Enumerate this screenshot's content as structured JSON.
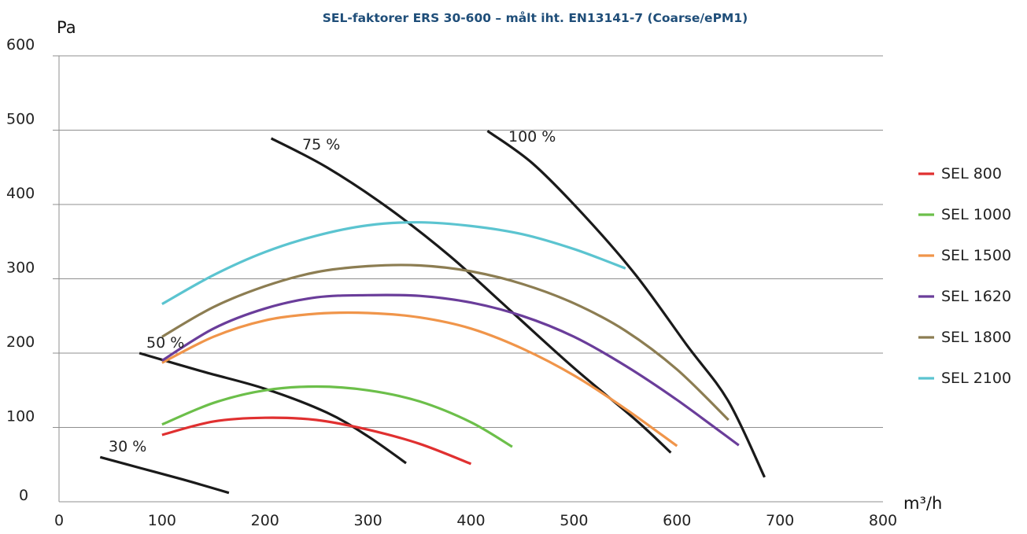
{
  "chart_data": {
    "type": "line",
    "title": "SEL-faktorer ERS 30-600 – målt iht. EN13141-7 (Coarse/ePM1)",
    "xlabel": "m³/h",
    "ylabel": "Pa",
    "xlim": [
      0,
      800
    ],
    "ylim": [
      0,
      600
    ],
    "x_ticks": [
      "0",
      "100",
      "200",
      "300",
      "400",
      "500",
      "600",
      "700",
      "800"
    ],
    "y_ticks": [
      "0",
      "100",
      "200",
      "300",
      "400",
      "500",
      "600"
    ],
    "grid": "horizontal",
    "legend_position": "right",
    "series": [
      {
        "name": "SEL 800",
        "color": "#e03030",
        "x": [
          100,
          150,
          200,
          250,
          300,
          350,
          400
        ],
        "y": [
          90,
          108,
          113,
          110,
          97,
          78,
          51
        ]
      },
      {
        "name": "SEL 1000",
        "color": "#6cbf4a",
        "x": [
          100,
          150,
          200,
          250,
          300,
          350,
          400,
          440
        ],
        "y": [
          104,
          133,
          150,
          155,
          150,
          135,
          107,
          74
        ]
      },
      {
        "name": "SEL 1500",
        "color": "#f0954a",
        "x": [
          100,
          150,
          200,
          250,
          300,
          350,
          400,
          450,
          500,
          550,
          600
        ],
        "y": [
          187,
          222,
          244,
          253,
          254,
          248,
          233,
          206,
          170,
          125,
          75
        ]
      },
      {
        "name": "SEL 1620",
        "color": "#6a3d9a",
        "x": [
          100,
          150,
          200,
          250,
          300,
          350,
          400,
          450,
          500,
          550,
          600,
          660
        ],
        "y": [
          190,
          233,
          260,
          275,
          278,
          277,
          268,
          250,
          222,
          183,
          137,
          76
        ]
      },
      {
        "name": "SEL 1800",
        "color": "#8c7d52",
        "x": [
          100,
          150,
          200,
          250,
          300,
          350,
          400,
          450,
          500,
          550,
          600,
          650
        ],
        "y": [
          222,
          262,
          290,
          309,
          317,
          318,
          310,
          293,
          267,
          230,
          178,
          110
        ]
      },
      {
        "name": "SEL 2100",
        "color": "#5bc4d0",
        "x": [
          100,
          150,
          200,
          250,
          300,
          350,
          400,
          450,
          500,
          550
        ],
        "y": [
          266,
          305,
          336,
          358,
          372,
          376,
          371,
          360,
          340,
          314
        ]
      }
    ],
    "efficiency_lines": [
      {
        "label": "30 %",
        "x": [
          40,
          80,
          120,
          165
        ],
        "y": [
          60,
          45,
          30,
          12
        ]
      },
      {
        "label": "50 %",
        "x": [
          78,
          140,
          200,
          260,
          300,
          337
        ],
        "y": [
          200,
          175,
          152,
          120,
          88,
          52
        ]
      },
      {
        "label": "75 %",
        "x": [
          206,
          260,
          320,
          380,
          440,
          500,
          560,
          594
        ],
        "y": [
          489,
          450,
          395,
          330,
          255,
          180,
          110,
          66
        ]
      },
      {
        "label": "100 %",
        "x": [
          416,
          460,
          510,
          560,
          610,
          650,
          685
        ],
        "y": [
          499,
          455,
          385,
          305,
          210,
          135,
          33
        ]
      }
    ]
  }
}
